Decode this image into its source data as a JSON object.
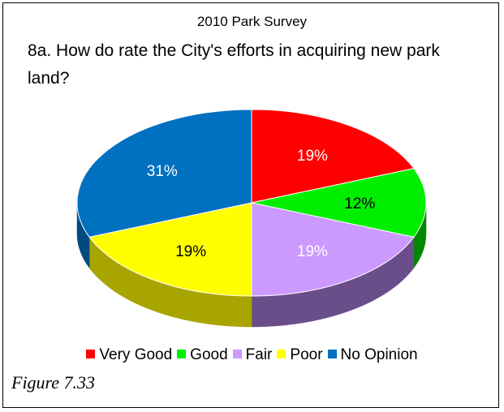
{
  "chart_data": {
    "type": "pie",
    "subtitle": "2010 Park Survey",
    "title": "8a. How do rate the City's efforts in acquiring new park land?",
    "slices": [
      {
        "label": "Very Good",
        "value": 19,
        "display": "19%",
        "color": "#ff0000",
        "side_color": "#a00000",
        "label_color": "#ffffff"
      },
      {
        "label": "Good",
        "value": 12,
        "display": "12%",
        "color": "#00ee00",
        "side_color": "#008800",
        "label_color": "#000000"
      },
      {
        "label": "Fair",
        "value": 19,
        "display": "19%",
        "color": "#cc99ff",
        "side_color": "#6a4e8a",
        "label_color": "#ffffff"
      },
      {
        "label": "Poor",
        "value": 19,
        "display": "19%",
        "color": "#ffff00",
        "side_color": "#a8a400",
        "label_color": "#000000"
      },
      {
        "label": "No Opinion",
        "value": 31,
        "display": "31%",
        "color": "#0070c0",
        "side_color": "#004a80",
        "label_color": "#ffffff"
      }
    ],
    "legend_position": "bottom",
    "style": "3d"
  },
  "caption": "Figure 7.33"
}
